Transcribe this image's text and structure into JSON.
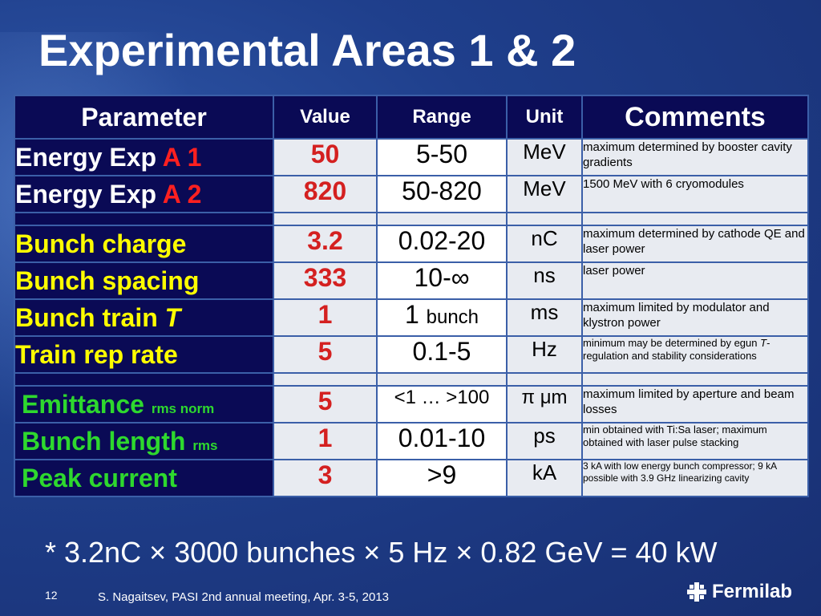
{
  "title": "Experimental Areas 1 & 2",
  "table": {
    "headers": [
      "Parameter",
      "Value",
      "Range",
      "Unit",
      "Comments"
    ],
    "rows": {
      "r1": {
        "param_main": "Energy Exp ",
        "param_accent": "A 1",
        "value": "50",
        "range": "5-50",
        "unit": "MeV",
        "comment": "maximum determined by booster cavity gradients"
      },
      "r2": {
        "param_main": "Energy Exp ",
        "param_accent": "A 2",
        "value": "820",
        "range": "50-820",
        "unit": "MeV",
        "comment": "1500 MeV with 6 cryomodules"
      },
      "r3": {
        "param": "Bunch charge",
        "value": "3.2",
        "range": "0.02-20",
        "unit": "nC",
        "comment": "maximum determined by cathode QE and laser power"
      },
      "r4": {
        "param": "Bunch spacing",
        "value": "333",
        "range": "10-∞",
        "unit": "ns",
        "comment": "laser power"
      },
      "r5": {
        "param_main": "Bunch train ",
        "param_italic": "T",
        "value": "1",
        "range_main": "1 ",
        "range_sub": "bunch",
        "unit": "ms",
        "comment": "maximum limited by modulator and klystron power"
      },
      "r6": {
        "param": "Train rep rate",
        "value": "5",
        "range": "0.1-5",
        "unit": "Hz",
        "comment_1": "minimum may be determined by egun ",
        "comment_italic": "T",
        "comment_2": "-regulation and stability considerations"
      },
      "r7": {
        "param_main": "Emittance ",
        "param_sub": "rms  norm",
        "value": "5",
        "range": "<1 … >100",
        "unit": "π μm",
        "comment": "maximum limited by aperture and beam losses"
      },
      "r8": {
        "param_main": "Bunch length ",
        "param_sub": "rms",
        "value": "1",
        "range": "0.01-10",
        "unit": "ps",
        "comment_1": "min obtained with Ti:Sa laser; maximum",
        "comment_2": "obtained with laser pulse stacking"
      },
      "r9": {
        "param": "Peak current",
        "value": "3",
        "range": ">9",
        "unit": "kA",
        "comment": "3 kA with low energy bunch compressor; 9 kA possible with 3.9 GHz linearizing cavity"
      }
    }
  },
  "footnote": "* 3.2nC × 3000 bunches × 5 Hz × 0.82 GeV = 40 kW",
  "page_number": "12",
  "credit": "S. Nagaitsev, PASI 2nd annual meeting, Apr. 3-5, 2013",
  "logo_text": "Fermilab",
  "colors": {
    "accent_red": "#d42020",
    "yellow": "#ffff00",
    "green": "#2ed82e",
    "header_bg": "#0a0a55"
  }
}
